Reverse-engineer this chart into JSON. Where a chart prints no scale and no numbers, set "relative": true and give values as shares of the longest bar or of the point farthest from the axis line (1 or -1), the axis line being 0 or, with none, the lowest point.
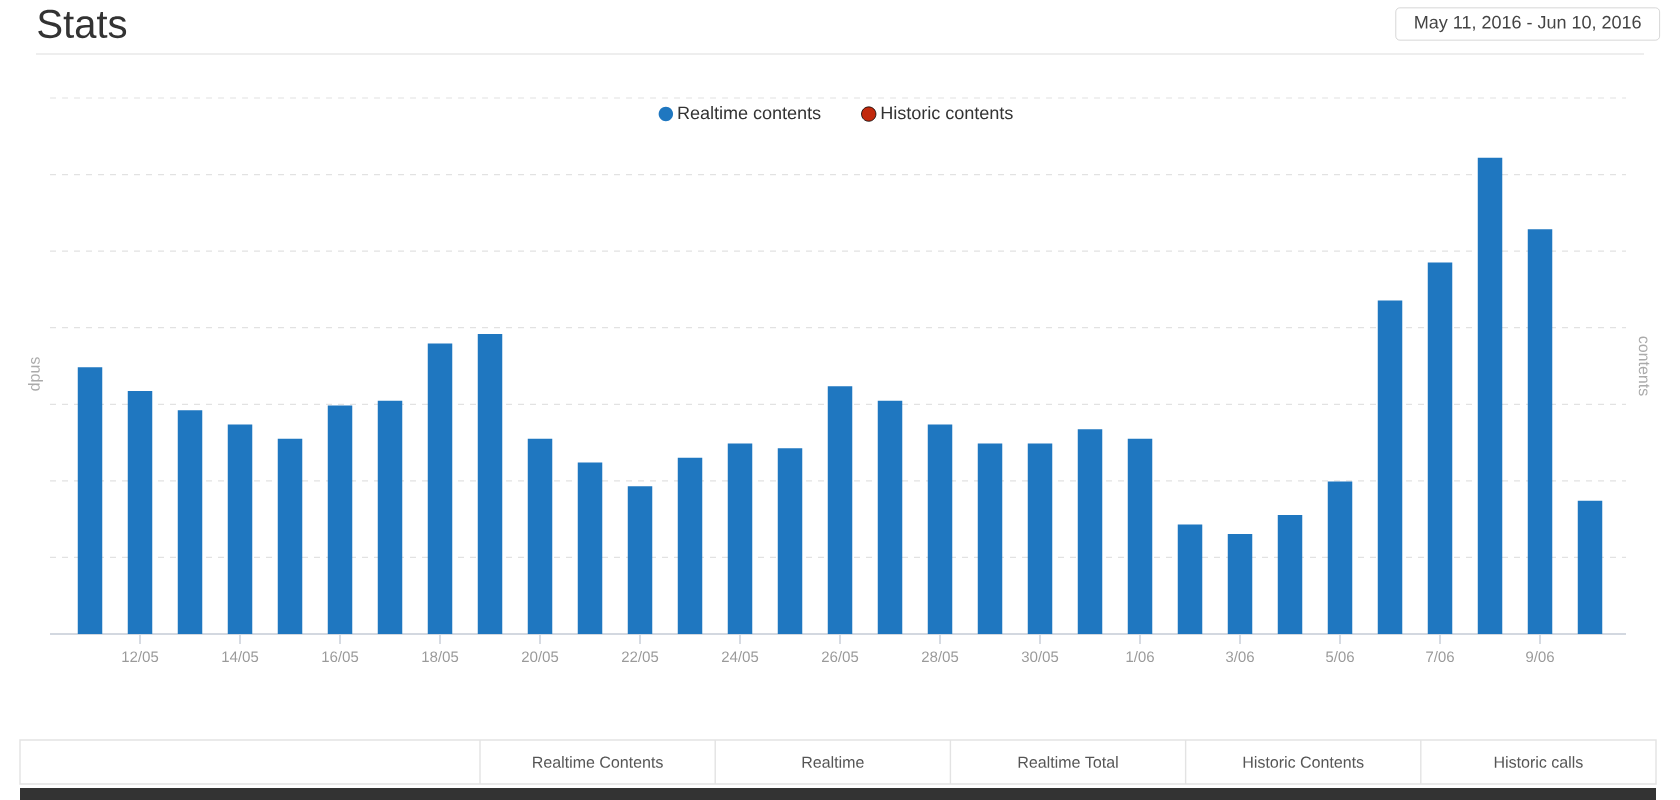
{
  "chart_data": {
    "type": "bar",
    "title": "Stats",
    "subtitle": "May 11, 2016 - Jun 10, 2016",
    "ylabel": "dpus",
    "y2label": "contents",
    "categories": [
      null,
      "12/05",
      null,
      "14/05",
      null,
      "16/05",
      null,
      "18/05",
      null,
      "20/05",
      null,
      "22/05",
      null,
      "24/05",
      null,
      "26/05",
      null,
      "28/05",
      null,
      "30/05",
      null,
      "1/06",
      null,
      "3/06",
      null,
      "5/06",
      null,
      "7/06",
      null,
      "9/06",
      null
    ],
    "relative": true,
    "series": [
      {
        "name": "Realtime contents",
        "color": "#1f77c0",
        "values": [
          0.56,
          0.51,
          0.47,
          0.44,
          0.41,
          0.48,
          0.49,
          0.61,
          0.63,
          0.41,
          0.36,
          0.31,
          0.37,
          0.4,
          0.39,
          0.52,
          0.49,
          0.44,
          0.4,
          0.4,
          0.43,
          0.41,
          0.23,
          0.21,
          0.25,
          0.32,
          0.7,
          0.78,
          1,
          0.85,
          0.28
        ]
      },
      {
        "name": "Historic contents",
        "color": "#c2290d",
        "values": [
          null,
          null,
          null,
          null,
          null,
          null,
          null,
          null,
          null,
          null,
          null,
          null,
          null,
          null,
          null,
          null,
          null,
          null,
          null,
          null,
          null,
          null,
          null,
          null,
          null,
          null,
          null,
          null,
          null,
          null,
          null
        ]
      }
    ],
    "grid": "y",
    "legend": "top",
    "annotations": [
      "Realtime Contents",
      "Realtime",
      "Realtime Total",
      "Historic Contents",
      "Historic calls"
    ]
  }
}
